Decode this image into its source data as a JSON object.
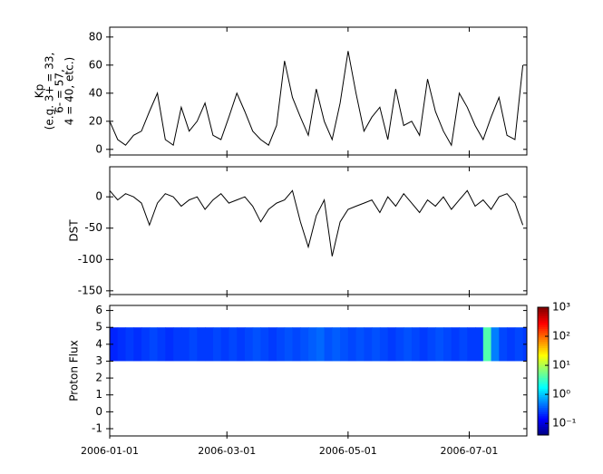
{
  "chart_data": [
    {
      "type": "line",
      "ylabel": [
        "Kp",
        "(e.g. 3+ = 33,",
        "6- = 57,",
        "4 = 40, etc.)"
      ],
      "color": "#000000",
      "xlim": [
        "2006-01-01",
        "2006-07-30"
      ],
      "xticks": [
        "2006-01-01",
        "2006-03-01",
        "2006-05-01",
        "2006-07-01"
      ],
      "ylim": [
        -4,
        87
      ],
      "yticks": [
        0,
        20,
        40,
        60,
        80
      ],
      "x": [
        "2006-01-01",
        "2006-01-05",
        "2006-01-09",
        "2006-01-13",
        "2006-01-17",
        "2006-01-21",
        "2006-01-25",
        "2006-01-29",
        "2006-02-02",
        "2006-02-06",
        "2006-02-10",
        "2006-02-14",
        "2006-02-18",
        "2006-02-22",
        "2006-02-26",
        "2006-03-02",
        "2006-03-06",
        "2006-03-10",
        "2006-03-14",
        "2006-03-18",
        "2006-03-22",
        "2006-03-26",
        "2006-03-30",
        "2006-04-03",
        "2006-04-07",
        "2006-04-11",
        "2006-04-15",
        "2006-04-19",
        "2006-04-23",
        "2006-04-27",
        "2006-05-01",
        "2006-05-05",
        "2006-05-09",
        "2006-05-13",
        "2006-05-17",
        "2006-05-21",
        "2006-05-25",
        "2006-05-29",
        "2006-06-02",
        "2006-06-06",
        "2006-06-10",
        "2006-06-14",
        "2006-06-18",
        "2006-06-22",
        "2006-06-26",
        "2006-06-30",
        "2006-07-04",
        "2006-07-08",
        "2006-07-12",
        "2006-07-16",
        "2006-07-20",
        "2006-07-24",
        "2006-07-28"
      ],
      "values": [
        20,
        7,
        3,
        10,
        13,
        27,
        40,
        7,
        3,
        30,
        13,
        20,
        33,
        10,
        7,
        23,
        40,
        27,
        13,
        7,
        3,
        17,
        63,
        37,
        23,
        10,
        43,
        20,
        7,
        33,
        70,
        40,
        13,
        23,
        30,
        7,
        43,
        17,
        20,
        10,
        50,
        27,
        13,
        3,
        40,
        30,
        17,
        7,
        23,
        37,
        10,
        7,
        60
      ]
    },
    {
      "type": "line",
      "ylabel": [
        "DST"
      ],
      "color": "#000000",
      "xlim": [
        "2006-01-01",
        "2006-07-30"
      ],
      "xticks": [
        "2006-01-01",
        "2006-03-01",
        "2006-05-01",
        "2006-07-01"
      ],
      "ylim": [
        -156,
        48
      ],
      "yticks": [
        -150,
        -100,
        -50,
        0
      ],
      "x": [
        "2006-01-01",
        "2006-01-05",
        "2006-01-09",
        "2006-01-13",
        "2006-01-17",
        "2006-01-21",
        "2006-01-25",
        "2006-01-29",
        "2006-02-02",
        "2006-02-06",
        "2006-02-10",
        "2006-02-14",
        "2006-02-18",
        "2006-02-22",
        "2006-02-26",
        "2006-03-02",
        "2006-03-06",
        "2006-03-10",
        "2006-03-14",
        "2006-03-18",
        "2006-03-22",
        "2006-03-26",
        "2006-03-30",
        "2006-04-03",
        "2006-04-07",
        "2006-04-11",
        "2006-04-15",
        "2006-04-19",
        "2006-04-23",
        "2006-04-27",
        "2006-05-01",
        "2006-05-05",
        "2006-05-09",
        "2006-05-13",
        "2006-05-17",
        "2006-05-21",
        "2006-05-25",
        "2006-05-29",
        "2006-06-02",
        "2006-06-06",
        "2006-06-10",
        "2006-06-14",
        "2006-06-18",
        "2006-06-22",
        "2006-06-26",
        "2006-06-30",
        "2006-07-04",
        "2006-07-08",
        "2006-07-12",
        "2006-07-16",
        "2006-07-20",
        "2006-07-24",
        "2006-07-28"
      ],
      "values": [
        10,
        -5,
        5,
        0,
        -10,
        -45,
        -10,
        5,
        0,
        -15,
        -5,
        0,
        -20,
        -5,
        5,
        -10,
        -5,
        0,
        -15,
        -40,
        -20,
        -10,
        -5,
        10,
        -40,
        -80,
        -30,
        -5,
        -95,
        -40,
        -20,
        -15,
        -10,
        -5,
        -25,
        0,
        -15,
        5,
        -10,
        -25,
        -5,
        -15,
        0,
        -20,
        -5,
        10,
        -15,
        -5,
        -20,
        0,
        5,
        -10,
        -45
      ]
    },
    {
      "type": "heatmap",
      "ylabel": [
        "Proton Flux"
      ],
      "log_color": true,
      "xlim": [
        "2006-01-01",
        "2006-07-30"
      ],
      "xticks": [
        "2006-01-01",
        "2006-03-01",
        "2006-05-01",
        "2006-07-01"
      ],
      "ylim": [
        -1.43,
        6.3
      ],
      "yticks": [
        -1,
        0,
        1,
        2,
        3,
        4,
        5,
        6
      ],
      "ybins": [
        3,
        5
      ],
      "zlim": [
        -1.4,
        3
      ],
      "zticks": [
        {
          "value": -1,
          "label": "10⁻¹"
        },
        {
          "value": 0,
          "label": "10⁰"
        },
        {
          "value": 1,
          "label": "10¹"
        },
        {
          "value": 2,
          "label": "10²"
        },
        {
          "value": 3,
          "label": "10³"
        }
      ],
      "x": [
        "2006-01-01",
        "2006-01-05",
        "2006-01-09",
        "2006-01-13",
        "2006-01-17",
        "2006-01-21",
        "2006-01-25",
        "2006-01-29",
        "2006-02-02",
        "2006-02-06",
        "2006-02-10",
        "2006-02-14",
        "2006-02-18",
        "2006-02-22",
        "2006-02-26",
        "2006-03-02",
        "2006-03-06",
        "2006-03-10",
        "2006-03-14",
        "2006-03-18",
        "2006-03-22",
        "2006-03-26",
        "2006-03-30",
        "2006-04-03",
        "2006-04-07",
        "2006-04-11",
        "2006-04-15",
        "2006-04-19",
        "2006-04-23",
        "2006-04-27",
        "2006-05-01",
        "2006-05-05",
        "2006-05-09",
        "2006-05-13",
        "2006-05-17",
        "2006-05-21",
        "2006-05-25",
        "2006-05-29",
        "2006-06-02",
        "2006-06-06",
        "2006-06-10",
        "2006-06-14",
        "2006-06-18",
        "2006-06-22",
        "2006-06-26",
        "2006-06-30",
        "2006-07-04",
        "2006-07-08",
        "2006-07-12",
        "2006-07-16",
        "2006-07-20",
        "2006-07-24",
        "2006-07-28"
      ],
      "values": [
        -0.7,
        -0.65,
        -0.6,
        -0.65,
        -0.6,
        -0.55,
        -0.6,
        -0.65,
        -0.6,
        -0.6,
        -0.55,
        -0.6,
        -0.6,
        -0.55,
        -0.6,
        -0.55,
        -0.6,
        -0.55,
        -0.5,
        -0.55,
        -0.6,
        -0.55,
        -0.5,
        -0.55,
        -0.5,
        -0.45,
        -0.4,
        -0.5,
        -0.45,
        -0.5,
        -0.55,
        -0.5,
        -0.55,
        -0.5,
        -0.55,
        -0.6,
        -0.55,
        -0.5,
        -0.55,
        -0.6,
        -0.55,
        -0.5,
        -0.55,
        -0.6,
        -0.55,
        -0.6,
        -0.6,
        0.6,
        -0.3,
        -0.55,
        -0.6,
        -0.55,
        -0.6
      ]
    }
  ]
}
